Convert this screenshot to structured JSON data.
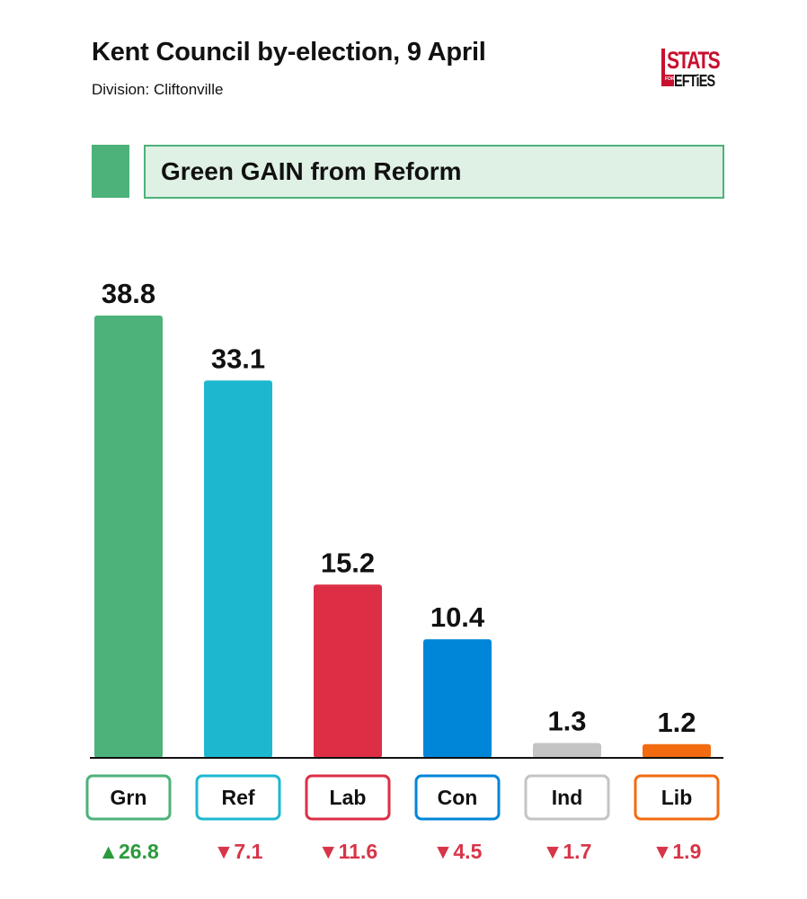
{
  "header": {
    "title": "Kent Council by-election, 9 April",
    "subtitle": "Division: Cliftonville",
    "logo_text_top": "STATS",
    "logo_text_small": "FOR",
    "logo_text_bottom": "EFTiES"
  },
  "banner": {
    "text": "Green GAIN from Reform",
    "accent": "#4cb27a"
  },
  "chart_data": {
    "type": "bar",
    "title": "Kent Council by-election, 9 April",
    "subtitle": "Division: Cliftonville",
    "categories": [
      "Grn",
      "Ref",
      "Lab",
      "Con",
      "Ind",
      "Lib"
    ],
    "values": [
      38.8,
      33.1,
      15.2,
      10.4,
      1.3,
      1.2
    ],
    "value_labels": [
      "38.8",
      "33.1",
      "15.2",
      "10.4",
      "1.3",
      "1.2"
    ],
    "changes": [
      26.8,
      -7.1,
      -11.6,
      -4.5,
      -1.7,
      -1.9
    ],
    "change_labels": [
      "▲26.8",
      "▼7.1",
      "▼11.6",
      "▼4.5",
      "▼1.7",
      "▼1.9"
    ],
    "colors": [
      "#4cb27a",
      "#1db8d0",
      "#dc2f45",
      "#0086d8",
      "#c4c4c4",
      "#f26b10"
    ],
    "change_colors": {
      "up": "#2a9a3a",
      "down": "#d73548"
    },
    "ylim": [
      0,
      38.8
    ],
    "grid": false,
    "legend": "none"
  }
}
